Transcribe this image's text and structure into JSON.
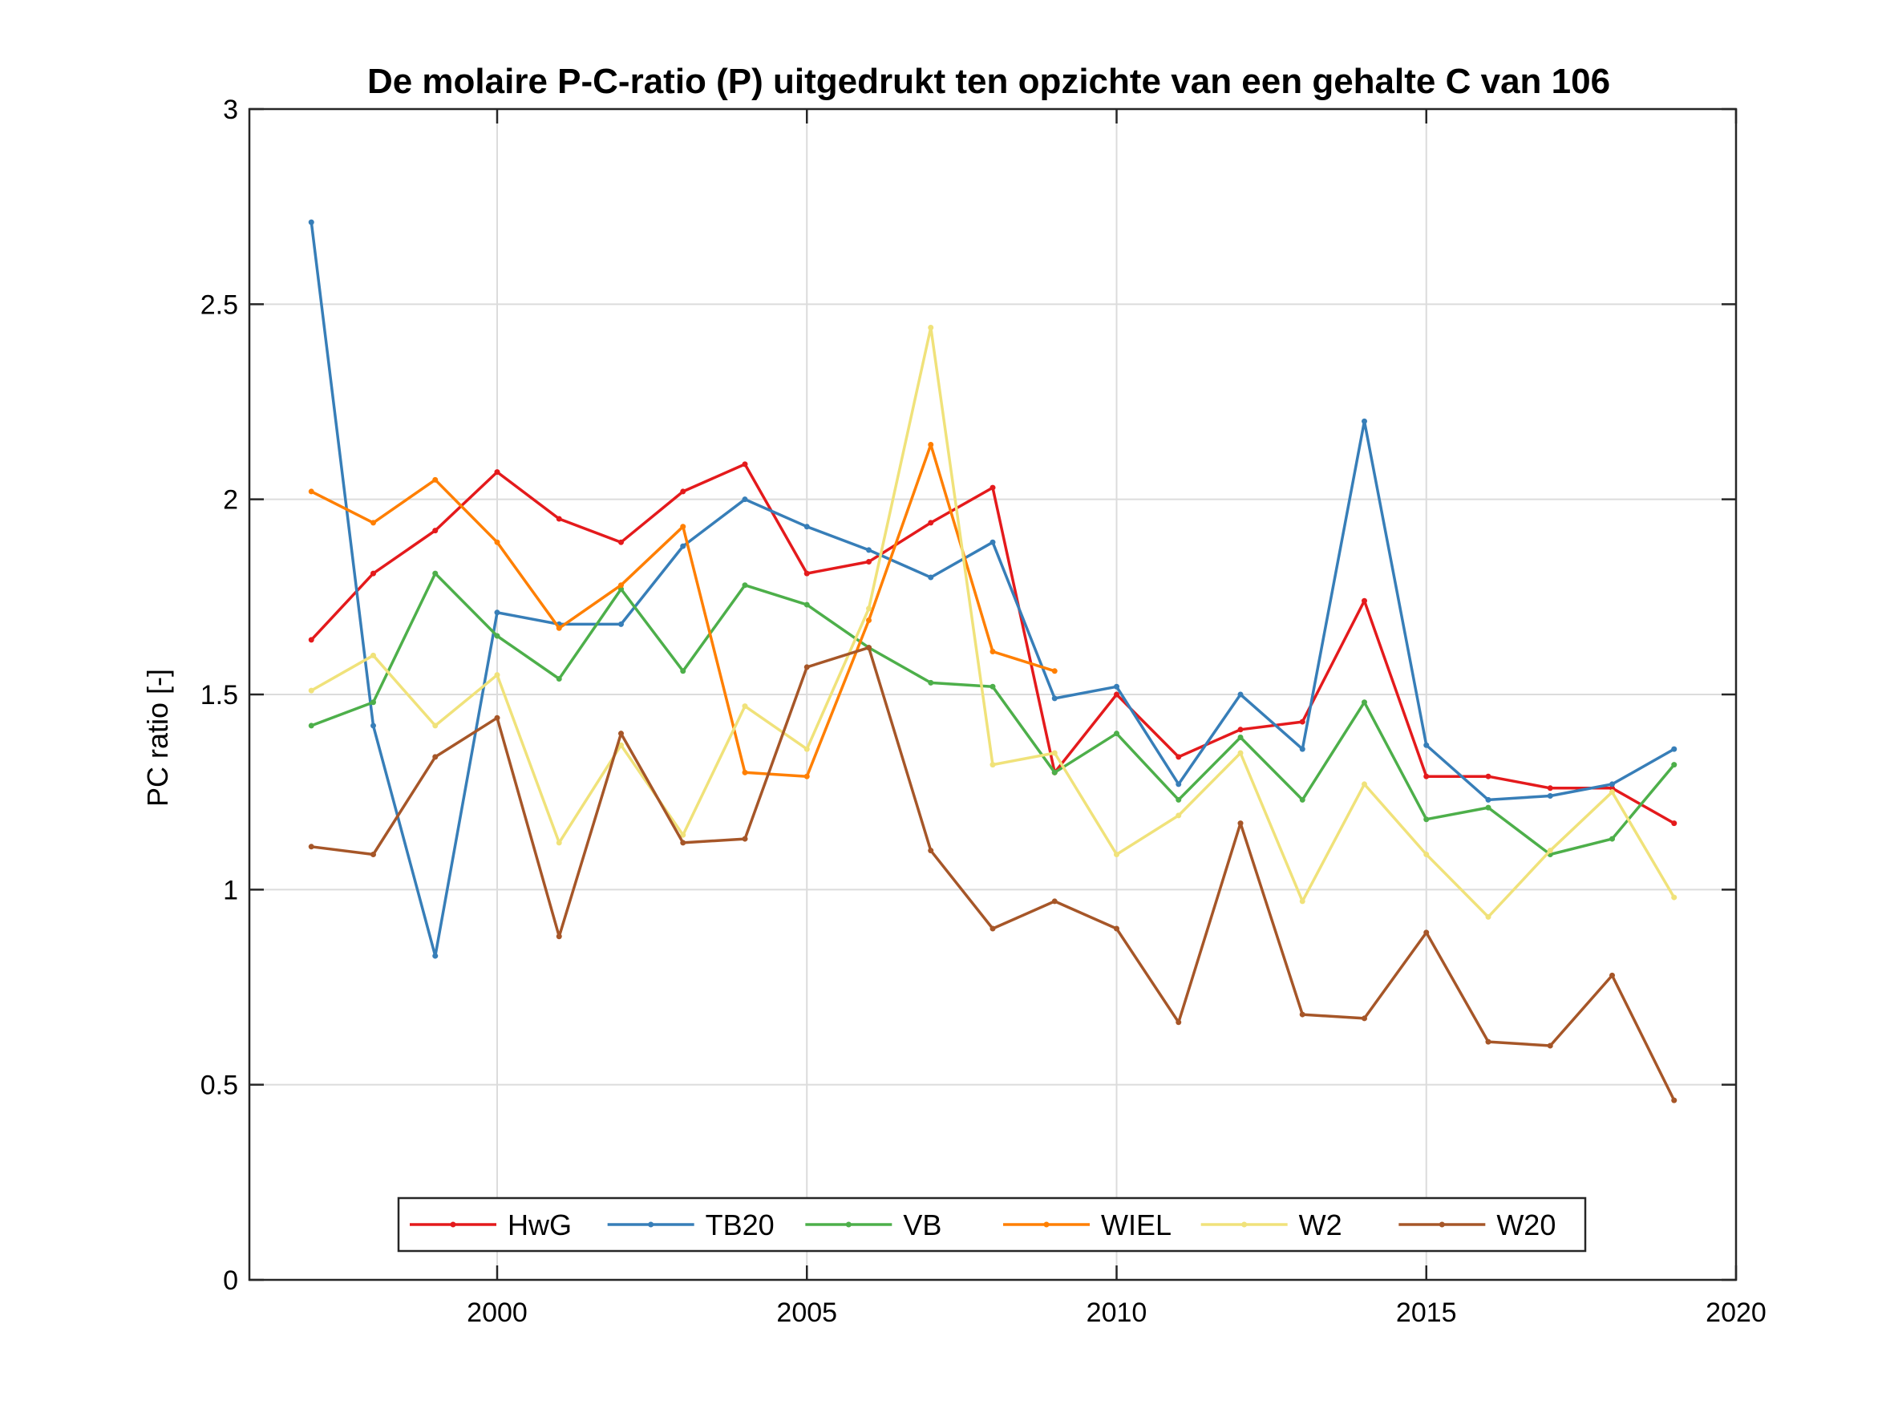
{
  "chart_data": {
    "type": "line",
    "title": "De molaire P-C-ratio (P) uitgedrukt ten opzichte van een gehalte C van 106",
    "xlabel": "",
    "ylabel": "PC ratio [-]",
    "xlim": [
      1996,
      2020
    ],
    "ylim": [
      0,
      3
    ],
    "xticks": [
      2000,
      2005,
      2010,
      2015,
      2020
    ],
    "yticks": [
      0,
      0.5,
      1,
      1.5,
      2,
      2.5,
      3
    ],
    "xtick_labels": [
      "2000",
      "2005",
      "2010",
      "2015",
      "2020"
    ],
    "ytick_labels": [
      "0",
      "0.5",
      "1",
      "1.5",
      "2",
      "2.5",
      "3"
    ],
    "grid": true,
    "legend_position": "bottom (horizontal)",
    "series": [
      {
        "name": "HwG",
        "color": "#e41a1c",
        "x": [
          1997,
          1998,
          1999,
          2000,
          2001,
          2002,
          2003,
          2004,
          2005,
          2006,
          2007,
          2008,
          2009,
          2010,
          2011,
          2012,
          2013,
          2014,
          2015,
          2016,
          2017,
          2018,
          2019
        ],
        "y": [
          1.64,
          1.81,
          1.92,
          2.07,
          1.95,
          1.89,
          2.02,
          2.09,
          1.81,
          1.84,
          1.94,
          2.03,
          1.3,
          1.5,
          1.34,
          1.41,
          1.43,
          1.74,
          1.29,
          1.29,
          1.26,
          1.26,
          1.17
        ]
      },
      {
        "name": "TB20",
        "color": "#377eb8",
        "x": [
          1997,
          1998,
          1999,
          2000,
          2001,
          2002,
          2003,
          2004,
          2005,
          2006,
          2007,
          2008,
          2009,
          2010,
          2011,
          2012,
          2013,
          2014,
          2015,
          2016,
          2017,
          2018,
          2019
        ],
        "y": [
          2.71,
          1.42,
          0.83,
          1.71,
          1.68,
          1.68,
          1.88,
          2.0,
          1.93,
          1.87,
          1.8,
          1.89,
          1.49,
          1.52,
          1.27,
          1.5,
          1.36,
          2.2,
          1.37,
          1.23,
          1.24,
          1.27,
          1.36
        ]
      },
      {
        "name": "VB",
        "color": "#4daf4a",
        "x": [
          1997,
          1998,
          1999,
          2000,
          2001,
          2002,
          2003,
          2004,
          2005,
          2006,
          2007,
          2008,
          2009,
          2010,
          2011,
          2012,
          2013,
          2014,
          2015,
          2016,
          2017,
          2018,
          2019
        ],
        "y": [
          1.42,
          1.48,
          1.81,
          1.65,
          1.54,
          1.77,
          1.56,
          1.78,
          1.73,
          1.62,
          1.53,
          1.52,
          1.3,
          1.4,
          1.23,
          1.39,
          1.23,
          1.48,
          1.18,
          1.21,
          1.09,
          1.13,
          1.32
        ]
      },
      {
        "name": "WIEL",
        "color": "#ff7f00",
        "x": [
          1997,
          1998,
          1999,
          2000,
          2001,
          2002,
          2003,
          2004,
          2005,
          2006,
          2007,
          2008,
          2009
        ],
        "y": [
          2.02,
          1.94,
          2.05,
          1.89,
          1.67,
          1.78,
          1.93,
          1.3,
          1.29,
          1.69,
          2.14,
          1.61,
          1.56
        ]
      },
      {
        "name": "W2",
        "color": "#f0e27a",
        "x": [
          1997,
          1998,
          1999,
          2000,
          2001,
          2002,
          2003,
          2004,
          2005,
          2006,
          2007,
          2008,
          2009,
          2010,
          2011,
          2012,
          2013,
          2014,
          2015,
          2016,
          2017,
          2018,
          2019
        ],
        "y": [
          1.51,
          1.6,
          1.42,
          1.55,
          1.12,
          1.37,
          1.14,
          1.47,
          1.36,
          1.72,
          2.44,
          1.32,
          1.35,
          1.09,
          1.19,
          1.35,
          0.97,
          1.27,
          1.09,
          0.93,
          1.1,
          1.25,
          0.98
        ]
      },
      {
        "name": "W20",
        "color": "#a65628",
        "x": [
          1997,
          1998,
          1999,
          2000,
          2001,
          2002,
          2003,
          2004,
          2005,
          2006,
          2007,
          2008,
          2009,
          2010,
          2011,
          2012,
          2013,
          2014,
          2015,
          2016,
          2017,
          2018,
          2019
        ],
        "y": [
          1.11,
          1.09,
          1.34,
          1.44,
          0.88,
          1.4,
          1.12,
          1.13,
          1.57,
          1.62,
          1.1,
          0.9,
          0.97,
          0.9,
          0.66,
          1.17,
          0.68,
          0.67,
          0.89,
          0.61,
          0.6,
          0.78,
          0.46
        ]
      }
    ]
  }
}
